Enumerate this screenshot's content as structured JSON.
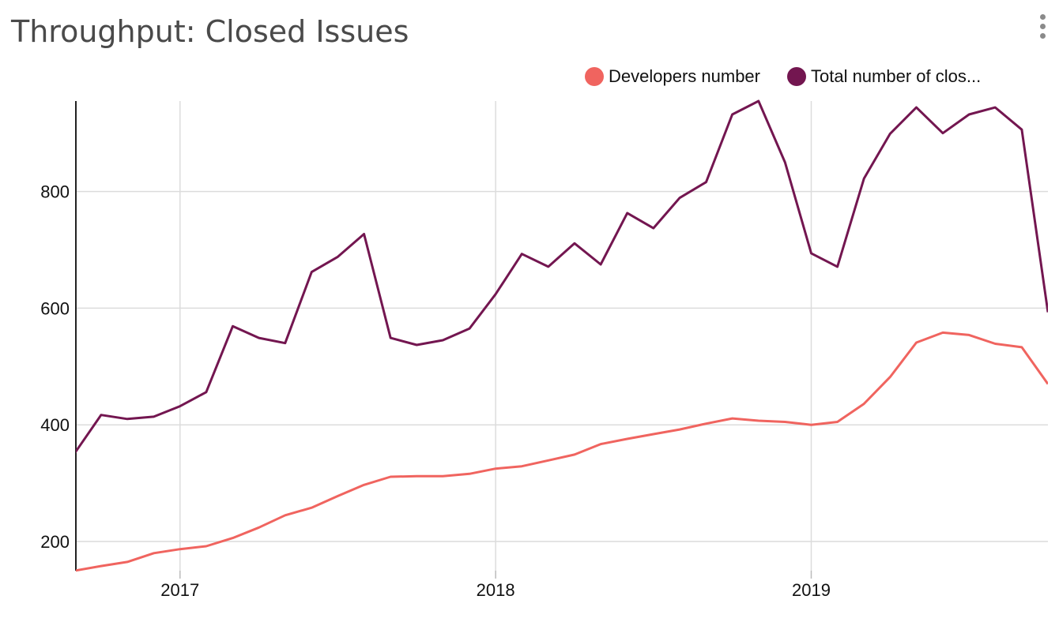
{
  "header": {
    "title": "Throughput: Closed Issues",
    "menu_icon": "more-vertical-icon"
  },
  "chart_data": {
    "type": "line",
    "title": "Throughput: Closed Issues",
    "xlabel": "",
    "ylabel": "",
    "xlim": [
      2016.67,
      2019.75
    ],
    "ylim": [
      150,
      955
    ],
    "yticks": [
      200,
      400,
      600,
      800
    ],
    "xticks": [
      2017,
      2018,
      2019
    ],
    "xtick_labels": [
      "2017",
      "2018",
      "2019"
    ],
    "grid": true,
    "legend_position": "top-right",
    "x": [
      2016.667,
      2016.75,
      2016.833,
      2016.917,
      2017.0,
      2017.083,
      2017.167,
      2017.25,
      2017.333,
      2017.417,
      2017.5,
      2017.583,
      2017.667,
      2017.75,
      2017.833,
      2017.917,
      2018.0,
      2018.083,
      2018.167,
      2018.25,
      2018.333,
      2018.417,
      2018.5,
      2018.583,
      2018.667,
      2018.75,
      2018.833,
      2018.917,
      2019.0,
      2019.083,
      2019.167,
      2019.25,
      2019.333,
      2019.417,
      2019.5,
      2019.583,
      2019.667,
      2019.75
    ],
    "series": [
      {
        "name": "Developers number",
        "color": "#f0645f",
        "values": [
          150,
          158,
          165,
          180,
          187,
          192,
          206,
          224,
          245,
          258,
          278,
          297,
          311,
          312,
          312,
          316,
          325,
          329,
          339,
          349,
          367,
          376,
          384,
          392,
          402,
          411,
          407,
          405,
          400,
          405,
          436,
          482,
          541,
          558,
          554,
          539,
          533,
          470
        ]
      },
      {
        "name": "Total number of clos...",
        "color": "#731650",
        "values": [
          352,
          417,
          410,
          414,
          432,
          456,
          569,
          549,
          540,
          662,
          688,
          727,
          549,
          537,
          545,
          565,
          624,
          693,
          671,
          711,
          675,
          763,
          737,
          789,
          816,
          932,
          955,
          850,
          694,
          671,
          822,
          899,
          944,
          900,
          932,
          944,
          906,
          593
        ]
      }
    ]
  }
}
